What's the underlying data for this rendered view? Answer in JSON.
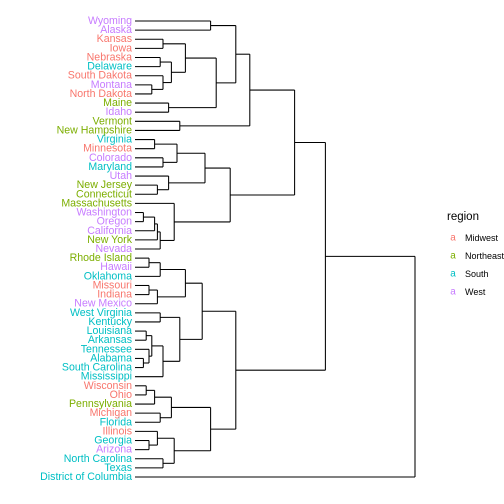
{
  "chart_data": {
    "type": "dendrogram",
    "orientation": "horizontal",
    "leaves": [
      {
        "label": "Wyoming",
        "region": "West"
      },
      {
        "label": "Alaska",
        "region": "West"
      },
      {
        "label": "Kansas",
        "region": "Midwest"
      },
      {
        "label": "Iowa",
        "region": "Midwest"
      },
      {
        "label": "Nebraska",
        "region": "Midwest"
      },
      {
        "label": "Delaware",
        "region": "South"
      },
      {
        "label": "South Dakota",
        "region": "Midwest"
      },
      {
        "label": "Montana",
        "region": "West"
      },
      {
        "label": "North Dakota",
        "region": "Midwest"
      },
      {
        "label": "Maine",
        "region": "Northeast"
      },
      {
        "label": "Idaho",
        "region": "West"
      },
      {
        "label": "Vermont",
        "region": "Northeast"
      },
      {
        "label": "New Hampshire",
        "region": "Northeast"
      },
      {
        "label": "Virginia",
        "region": "South"
      },
      {
        "label": "Minnesota",
        "region": "Midwest"
      },
      {
        "label": "Colorado",
        "region": "West"
      },
      {
        "label": "Maryland",
        "region": "South"
      },
      {
        "label": "Utah",
        "region": "West"
      },
      {
        "label": "New Jersey",
        "region": "Northeast"
      },
      {
        "label": "Connecticut",
        "region": "Northeast"
      },
      {
        "label": "Massachusetts",
        "region": "Northeast"
      },
      {
        "label": "Washington",
        "region": "West"
      },
      {
        "label": "Oregon",
        "region": "West"
      },
      {
        "label": "California",
        "region": "West"
      },
      {
        "label": "New York",
        "region": "Northeast"
      },
      {
        "label": "Nevada",
        "region": "West"
      },
      {
        "label": "Rhode Island",
        "region": "Northeast"
      },
      {
        "label": "Hawaii",
        "region": "West"
      },
      {
        "label": "Oklahoma",
        "region": "South"
      },
      {
        "label": "Missouri",
        "region": "Midwest"
      },
      {
        "label": "Indiana",
        "region": "Midwest"
      },
      {
        "label": "New Mexico",
        "region": "West"
      },
      {
        "label": "West Virginia",
        "region": "South"
      },
      {
        "label": "Kentucky",
        "region": "South"
      },
      {
        "label": "Louisiana",
        "region": "South"
      },
      {
        "label": "Arkansas",
        "region": "South"
      },
      {
        "label": "Tennessee",
        "region": "South"
      },
      {
        "label": "Alabama",
        "region": "South"
      },
      {
        "label": "South Carolina",
        "region": "South"
      },
      {
        "label": "Mississippi",
        "region": "South"
      },
      {
        "label": "Wisconsin",
        "region": "Midwest"
      },
      {
        "label": "Ohio",
        "region": "Midwest"
      },
      {
        "label": "Pennsylvania",
        "region": "Northeast"
      },
      {
        "label": "Michigan",
        "region": "Midwest"
      },
      {
        "label": "Florida",
        "region": "South"
      },
      {
        "label": "Illinois",
        "region": "Midwest"
      },
      {
        "label": "Georgia",
        "region": "South"
      },
      {
        "label": "Arizona",
        "region": "West"
      },
      {
        "label": "North Carolina",
        "region": "South"
      },
      {
        "label": "Texas",
        "region": "South"
      },
      {
        "label": "District of Columbia",
        "region": "South"
      }
    ],
    "tree": {
      "h": 100,
      "c": [
        {
          "h": 68,
          "c": [
            {
              "h": 57,
              "c": [
                {
                  "h": 41,
                  "c": [
                    {
                      "h": 36,
                      "c": [
                        {
                          "h": 27,
                          "c": [
                            "Wyoming",
                            "Alaska"
                          ]
                        },
                        {
                          "h": 29,
                          "c": [
                            {
                              "h": 18,
                              "c": [
                                {
                                  "h": 10,
                                  "c": [
                                    "Kansas",
                                    "Iowa"
                                  ]
                                },
                                {
                                  "h": 13,
                                  "c": [
                                    {
                                      "h": 9,
                                      "c": [
                                        "Nebraska",
                                        "Delaware"
                                      ]
                                    },
                                    {
                                      "h": 10,
                                      "c": [
                                        "South Dakota",
                                        {
                                          "h": 6,
                                          "c": [
                                            "Montana",
                                            "North Dakota"
                                          ]
                                        }
                                      ]
                                    }
                                  ]
                                }
                              ]
                            },
                            {
                              "h": 12,
                              "c": [
                                "Maine",
                                "Idaho"
                              ]
                            }
                          ]
                        }
                      ]
                    },
                    {
                      "h": 16,
                      "c": [
                        "Vermont",
                        "New Hampshire"
                      ]
                    }
                  ]
                },
                {
                  "h": 34,
                  "c": [
                    {
                      "h": 25,
                      "c": [
                        {
                          "h": 15,
                          "c": [
                            {
                              "h": 7,
                              "c": [
                                "Virginia",
                                "Minnesota"
                              ]
                            },
                            {
                              "h": 10,
                              "c": [
                                "Colorado",
                                "Maryland"
                              ]
                            }
                          ]
                        },
                        {
                          "h": 12,
                          "c": [
                            "Utah",
                            {
                              "h": 8,
                              "c": [
                                "New Jersey",
                                "Connecticut"
                              ]
                            }
                          ]
                        }
                      ]
                    },
                    {
                      "h": 14,
                      "c": [
                        "Massachusetts",
                        {
                          "h": 9,
                          "c": [
                            {
                              "h": 8,
                              "c": [
                                {
                                  "h": 7,
                                  "c": [
                                    {
                                      "h": 3,
                                      "c": [
                                        "Washington",
                                        "Oregon"
                                      ]
                                    },
                                    "California"
                                  ]
                                },
                                "New York"
                              ]
                            },
                            "Nevada"
                          ]
                        }
                      ]
                    }
                  ]
                }
              ]
            },
            {
              "h": 36,
              "c": [
                {
                  "h": 24,
                  "c": [
                    {
                      "h": 18,
                      "c": [
                        {
                          "h": 9,
                          "c": [
                            {
                              "h": 5,
                              "c": [
                                "Rhode Island",
                                "Hawaii"
                              ]
                            },
                            "Oklahoma"
                          ]
                        },
                        {
                          "h": 8,
                          "c": [
                            {
                              "h": 5,
                              "c": [
                                "Missouri",
                                "Indiana"
                              ]
                            },
                            "New Mexico"
                          ]
                        }
                      ]
                    },
                    {
                      "h": 16,
                      "c": [
                        {
                          "h": 9,
                          "c": [
                            "West Virginia",
                            "Kentucky"
                          ]
                        },
                        {
                          "h": 10,
                          "c": [
                            {
                              "h": 6,
                              "c": [
                                {
                                  "h": 4,
                                  "c": [
                                    "Louisiana",
                                    "Arkansas"
                                  ]
                                },
                                {
                                  "h": 5,
                                  "c": [
                                    "Tennessee",
                                    {
                                      "h": 3,
                                      "c": [
                                        "Alabama",
                                        "South Carolina"
                                      ]
                                    }
                                  ]
                                }
                              ]
                            },
                            "Mississippi"
                          ]
                        }
                      ]
                    }
                  ]
                },
                {
                  "h": 27,
                  "c": [
                    {
                      "h": 13,
                      "c": [
                        {
                          "h": 7,
                          "c": [
                            {
                              "h": 4,
                              "c": [
                                "Wisconsin",
                                "Ohio"
                              ]
                            },
                            "Pennsylvania"
                          ]
                        },
                        {
                          "h": 9,
                          "c": [
                            "Michigan",
                            "Florida"
                          ]
                        }
                      ]
                    },
                    {
                      "h": 14,
                      "c": [
                        {
                          "h": 8,
                          "c": [
                            "Illinois",
                            {
                              "h": 5,
                              "c": [
                                "Georgia",
                                "Arizona"
                              ]
                            }
                          ]
                        },
                        {
                          "h": 10,
                          "c": [
                            "North Carolina",
                            "Texas"
                          ]
                        }
                      ]
                    }
                  ]
                }
              ]
            }
          ]
        },
        "District of Columbia"
      ]
    },
    "legend": {
      "title": "region",
      "key_glyph": "a",
      "placement": "right",
      "entries": [
        {
          "label": "Midwest",
          "color": "#F8766D"
        },
        {
          "label": "Northeast",
          "color": "#7CAE00"
        },
        {
          "label": "South",
          "color": "#00BFC4"
        },
        {
          "label": "West",
          "color": "#C77CFF"
        }
      ]
    },
    "colors": {
      "Midwest": "#F8766D",
      "Northeast": "#7CAE00",
      "South": "#00BFC4",
      "West": "#C77CFF",
      "branch": "#000000"
    },
    "grid": false,
    "axes_visible": false
  }
}
